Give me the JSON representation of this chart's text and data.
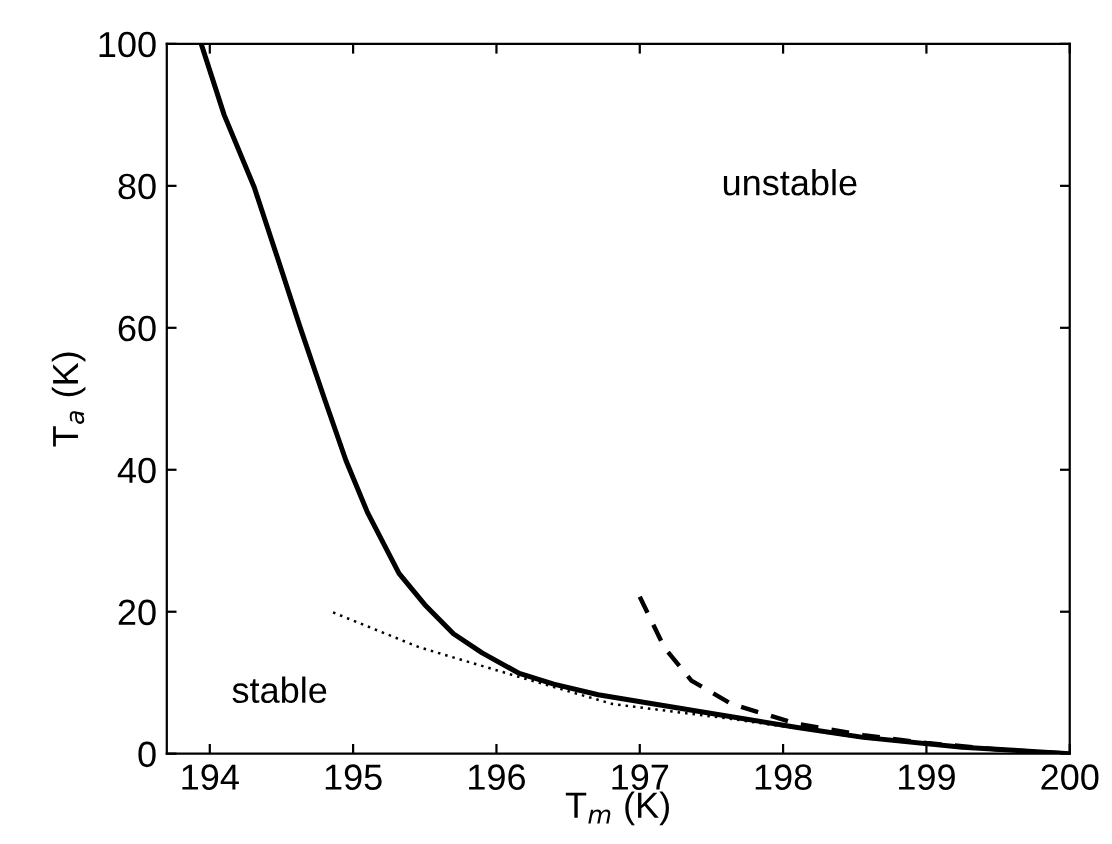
{
  "chart_data": {
    "type": "line",
    "xlabel": "T$_{m}$ (K)",
    "ylabel": "T$_{a}$ (K)",
    "xlim": [
      193.7,
      200
    ],
    "ylim": [
      0,
      100
    ],
    "xticks": [
      194,
      195,
      196,
      197,
      198,
      199,
      200
    ],
    "yticks": [
      0,
      20,
      40,
      60,
      80,
      100
    ],
    "grid": false,
    "legend": false,
    "series": [
      {
        "color": "#000000",
        "line_style": "solid",
        "x": [
          193.94,
          194.1,
          194.31,
          194.47,
          194.63,
          194.8,
          194.95,
          195.1,
          195.32,
          195.5,
          195.7,
          195.9,
          196.16,
          196.4,
          196.71,
          197.1,
          197.64,
          198.1,
          198.56,
          199.25,
          200
        ],
        "values": [
          100,
          90,
          79.8,
          70,
          60.1,
          50,
          41.3,
          34,
          25.4,
          21,
          16.9,
          14.2,
          11.3,
          9.8,
          8.3,
          7,
          5.2,
          3.7,
          2.3,
          0.9,
          0
        ]
      },
      {
        "color": "#000000",
        "line_style": "dashed",
        "x": [
          197.0,
          197.17,
          197.36,
          197.64,
          198.1,
          198.56,
          199.0,
          199.5,
          200
        ],
        "values": [
          22.1,
          15,
          10.3,
          7,
          4.2,
          2.6,
          1.5,
          0.6,
          0
        ]
      },
      {
        "color": "#000000",
        "line_style": "dotted",
        "x": [
          194.86,
          195.46,
          196.16,
          196.81,
          197.64,
          198.56,
          199.25,
          200
        ],
        "values": [
          19.9,
          15,
          10.8,
          7.0,
          4.9,
          2.2,
          0.8,
          0
        ]
      }
    ],
    "annotations": [
      "unstable",
      "stable"
    ]
  }
}
